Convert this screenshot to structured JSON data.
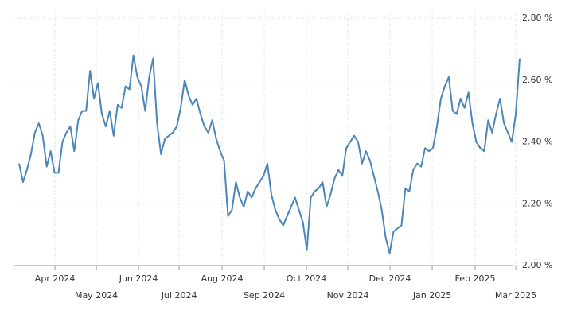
{
  "chart_data": {
    "type": "line",
    "values": [
      2.33,
      2.27,
      2.31,
      2.36,
      2.43,
      2.46,
      2.42,
      2.32,
      2.37,
      2.3,
      2.3,
      2.4,
      2.43,
      2.45,
      2.37,
      2.47,
      2.5,
      2.5,
      2.63,
      2.54,
      2.59,
      2.49,
      2.45,
      2.5,
      2.42,
      2.52,
      2.51,
      2.58,
      2.57,
      2.68,
      2.61,
      2.58,
      2.5,
      2.61,
      2.67,
      2.46,
      2.36,
      2.41,
      2.42,
      2.43,
      2.45,
      2.51,
      2.6,
      2.55,
      2.52,
      2.54,
      2.49,
      2.45,
      2.43,
      2.47,
      2.41,
      2.37,
      2.34,
      2.16,
      2.18,
      2.27,
      2.22,
      2.19,
      2.24,
      2.22,
      2.25,
      2.27,
      2.29,
      2.33,
      2.23,
      2.18,
      2.15,
      2.13,
      2.16,
      2.19,
      2.22,
      2.18,
      2.14,
      2.05,
      2.22,
      2.24,
      2.25,
      2.27,
      2.19,
      2.23,
      2.28,
      2.31,
      2.29,
      2.38,
      2.4,
      2.42,
      2.4,
      2.33,
      2.37,
      2.34,
      2.29,
      2.24,
      2.18,
      2.09,
      2.04,
      2.11,
      2.12,
      2.13,
      2.25,
      2.24,
      2.31,
      2.33,
      2.32,
      2.38,
      2.37,
      2.38,
      2.45,
      2.54,
      2.58,
      2.61,
      2.5,
      2.49,
      2.54,
      2.51,
      2.56,
      2.46,
      2.4,
      2.38,
      2.37,
      2.47,
      2.43,
      2.49,
      2.54,
      2.46,
      2.43,
      2.4,
      2.49,
      2.67
    ],
    "color": "#4a86b8",
    "xlim": [
      0,
      127
    ],
    "xticks": [
      {
        "value": 9.1,
        "label": "Apr 2024"
      },
      {
        "value": 19.6,
        "label": "May 2024"
      },
      {
        "value": 30.3,
        "label": "Jun 2024"
      },
      {
        "value": 40.6,
        "label": "Jul 2024"
      },
      {
        "value": 51.5,
        "label": "Aug 2024"
      },
      {
        "value": 62.2,
        "label": "Sep 2024"
      },
      {
        "value": 72.9,
        "label": "Oct 2024"
      },
      {
        "value": 83.4,
        "label": "Nov 2024"
      },
      {
        "value": 94.1,
        "label": "Dec 2024"
      },
      {
        "value": 104.8,
        "label": "Jan 2025"
      },
      {
        "value": 115.7,
        "label": "Feb 2025"
      },
      {
        "value": 126.0,
        "label": "Mar 2025"
      }
    ],
    "ylim": [
      2.0,
      2.8
    ],
    "yticks": [
      {
        "value": 2.0,
        "label": "2.00 %"
      },
      {
        "value": 2.2,
        "label": "2.20 %"
      },
      {
        "value": 2.4,
        "label": "2.40 %"
      },
      {
        "value": 2.6,
        "label": "2.60 %"
      },
      {
        "value": 2.8,
        "label": "2.80 %"
      }
    ],
    "grid": true
  }
}
